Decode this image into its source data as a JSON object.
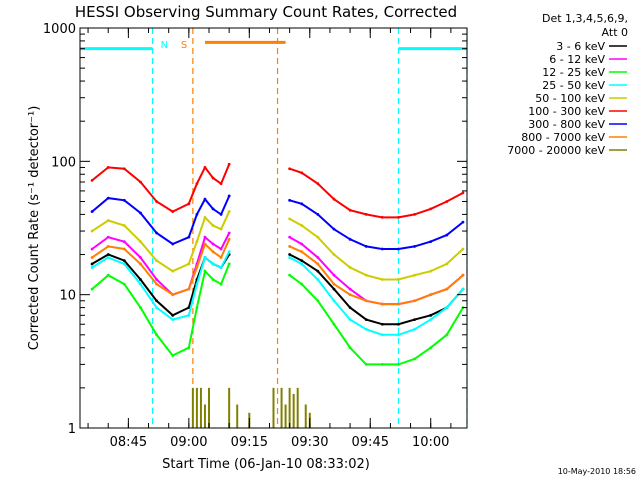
{
  "chart_data": {
    "type": "line",
    "title": "HESSI Observing Summary Count Rates, Corrected",
    "xlabel": "Start Time (06-Jan-10 08:33:02)",
    "ylabel": "Corrected Count Rate (s⁻¹ detector⁻¹)",
    "yscale": "log",
    "ylim": [
      1,
      1000
    ],
    "xlim": [
      "08:33",
      "10:09"
    ],
    "y_ticks": [
      "1",
      "10",
      "100",
      "1000"
    ],
    "x_ticks": [
      "08:45",
      "09:00",
      "09:15",
      "09:30",
      "09:45",
      "10:00"
    ],
    "grid": false,
    "legend_position": "right",
    "legend_title": [
      "Det 1,3,4,5,6,9,",
      "Att 0"
    ],
    "footer_date": "10-May-2010 18:56",
    "annotations": [
      {
        "label": "N",
        "color": "#00ffff",
        "type": "night",
        "level": 700,
        "spans": [
          [
            "08:33",
            "08:51"
          ],
          [
            "09:52",
            "10:09"
          ]
        ],
        "boundaries": [
          "08:51",
          "09:52",
          "10:09"
        ]
      },
      {
        "label": "S",
        "color": "#ff8000",
        "type": "saa",
        "level": 780,
        "spans": [
          [
            "09:04",
            "09:24"
          ]
        ],
        "boundaries": [
          "09:01",
          "09:22"
        ]
      }
    ],
    "x": [
      "08:36",
      "08:40",
      "08:44",
      "08:48",
      "08:52",
      "08:56",
      "09:00",
      "09:02",
      "09:04",
      "09:06",
      "09:08",
      "09:10",
      "09:25",
      "09:28",
      "09:32",
      "09:36",
      "09:40",
      "09:44",
      "09:48",
      "09:52",
      "09:56",
      "10:00",
      "10:04",
      "10:08"
    ],
    "series": [
      {
        "name": "3 - 6 keV",
        "color": "#000000",
        "values": [
          17,
          20,
          18,
          13,
          9,
          7,
          8,
          13,
          19,
          17,
          16,
          20,
          20,
          18,
          15,
          11,
          8,
          6.5,
          6,
          6,
          6.5,
          7,
          8,
          11
        ]
      },
      {
        "name": "6 - 12 keV",
        "color": "#ff00ff",
        "values": [
          22,
          27,
          25,
          19,
          13,
          10,
          11,
          17,
          27,
          24,
          22,
          29,
          27,
          24,
          19,
          14,
          11,
          9,
          8.5,
          8.5,
          9,
          10,
          11,
          14
        ]
      },
      {
        "name": "12 - 25 keV",
        "color": "#00ff00",
        "values": [
          11,
          14,
          12,
          8,
          5,
          3.5,
          4,
          8,
          15,
          13,
          12,
          17,
          14,
          12,
          9,
          6,
          4,
          3,
          3,
          3,
          3.3,
          4,
          5,
          8
        ]
      },
      {
        "name": "25 - 50 keV",
        "color": "#00ffff",
        "values": [
          16,
          19,
          17,
          12,
          8,
          6.5,
          7,
          12,
          19,
          17,
          16,
          21,
          19,
          17,
          13,
          9,
          6.5,
          5.5,
          5,
          5,
          5.5,
          6.5,
          8,
          11
        ]
      },
      {
        "name": "50 - 100 keV",
        "color": "#cccc00",
        "values": [
          30,
          36,
          33,
          25,
          18,
          15,
          17,
          25,
          38,
          33,
          31,
          42,
          37,
          33,
          27,
          20,
          16,
          14,
          13,
          13,
          14,
          15,
          17,
          22
        ]
      },
      {
        "name": "100 - 300 keV",
        "color": "#ff0000",
        "values": [
          72,
          90,
          88,
          70,
          50,
          42,
          48,
          68,
          90,
          75,
          68,
          95,
          88,
          82,
          68,
          52,
          43,
          40,
          38,
          38,
          40,
          44,
          50,
          58
        ]
      },
      {
        "name": "300 - 800 keV",
        "color": "#0000ff",
        "values": [
          42,
          53,
          51,
          41,
          29,
          24,
          27,
          40,
          52,
          44,
          40,
          55,
          51,
          48,
          40,
          31,
          26,
          23,
          22,
          22,
          23,
          25,
          28,
          35
        ]
      },
      {
        "name": "800 - 7000 keV",
        "color": "#ff8000",
        "values": [
          19,
          23,
          22,
          17,
          12,
          10,
          11,
          16,
          24,
          21,
          19,
          26,
          23,
          21,
          17,
          12,
          10,
          9,
          8.5,
          8.5,
          9,
          10,
          11,
          14
        ]
      },
      {
        "name": "7000 - 20000 keV",
        "color": "#808000",
        "values": [
          null,
          null,
          null,
          null,
          null,
          null,
          null,
          null,
          null,
          null,
          null,
          null,
          null,
          null,
          null,
          null,
          null,
          null,
          null,
          null,
          null,
          null,
          null,
          null
        ],
        "spikes": [
          [
            "09:01",
            2
          ],
          [
            "09:02",
            2
          ],
          [
            "09:03",
            2
          ],
          [
            "09:04",
            1.5
          ],
          [
            "09:05",
            2
          ],
          [
            "09:10",
            2
          ],
          [
            "09:12",
            1.5
          ],
          [
            "09:15",
            1.3
          ],
          [
            "09:21",
            2
          ],
          [
            "09:23",
            2
          ],
          [
            "09:24",
            1.5
          ],
          [
            "09:25",
            2
          ],
          [
            "09:26",
            1.8
          ],
          [
            "09:27",
            2
          ],
          [
            "09:29",
            1.5
          ],
          [
            "09:30",
            1.3
          ]
        ]
      }
    ]
  }
}
